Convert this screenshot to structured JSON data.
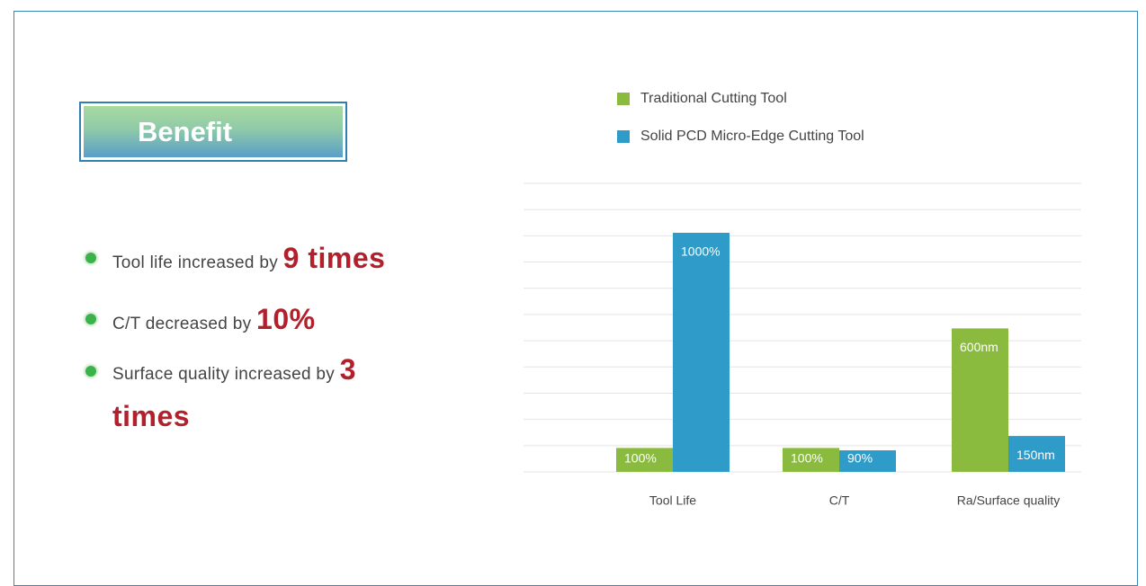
{
  "heading": "Benefit",
  "benefits": [
    {
      "text": "Tool life increased  by",
      "highlight": "9 times"
    },
    {
      "text": "C/T decreased by",
      "highlight": "10%"
    },
    {
      "text": "Surface quality increased by",
      "highlight": "3 times"
    }
  ],
  "chart_data": {
    "type": "bar",
    "categories": [
      "Tool Life",
      "C/T",
      "Ra/Surface quality"
    ],
    "series": [
      {
        "name": "Traditional Cutting Tool",
        "color": "#8aba3e",
        "values": [
          100,
          100,
          600
        ],
        "value_labels": [
          "100%",
          "100%",
          "600nm"
        ]
      },
      {
        "name": "Solid PCD Micro-Edge Cutting Tool",
        "color": "#2e9bc9",
        "values": [
          1000,
          90,
          150
        ],
        "value_labels": [
          "1000%",
          "90%",
          "150nm"
        ]
      }
    ],
    "grid": true
  }
}
